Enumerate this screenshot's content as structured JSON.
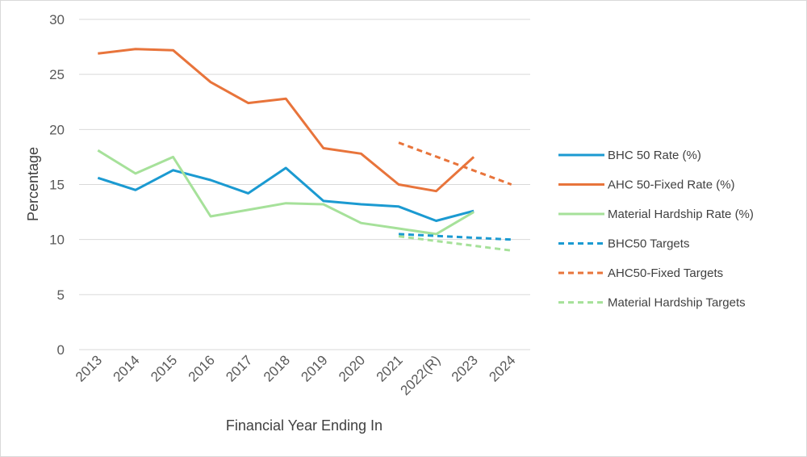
{
  "chart_data": {
    "type": "line",
    "title": "",
    "xlabel": "Financial Year Ending In",
    "ylabel": "Percentage",
    "ylim": [
      0,
      30
    ],
    "yticks": [
      "0",
      "5",
      "10",
      "15",
      "20",
      "25",
      "30"
    ],
    "categories": [
      "2013",
      "2014",
      "2015",
      "2016",
      "2017",
      "2018",
      "2019",
      "2020",
      "2021",
      "2022(R)",
      "2023",
      "2024"
    ],
    "grid": true,
    "legend_position": "right",
    "series": [
      {
        "name": "BHC 50 Rate (%)",
        "color": "#1b9ad1",
        "dash": "solid",
        "values": [
          15.6,
          14.5,
          16.3,
          15.4,
          14.2,
          16.5,
          13.5,
          13.2,
          13.0,
          11.7,
          12.6,
          null
        ]
      },
      {
        "name": " AHC 50-Fixed Rate (%)",
        "color": "#e8743b",
        "dash": "solid",
        "values": [
          26.9,
          27.3,
          27.2,
          24.3,
          22.4,
          22.8,
          18.3,
          17.8,
          15.0,
          14.4,
          17.5,
          null
        ]
      },
      {
        "name": " Material Hardship Rate (%)",
        "color": "#a6e19a",
        "dash": "solid",
        "values": [
          18.1,
          16.0,
          17.5,
          12.1,
          12.7,
          13.3,
          13.2,
          11.5,
          11.0,
          10.5,
          12.5,
          null
        ]
      },
      {
        "name": "BHC50 Targets",
        "color": "#1b9ad1",
        "dash": "dashed",
        "values": [
          null,
          null,
          null,
          null,
          null,
          null,
          null,
          null,
          10.5,
          null,
          null,
          10.0
        ]
      },
      {
        "name": "AHC50-Fixed Targets",
        "color": "#e8743b",
        "dash": "dashed",
        "values": [
          null,
          null,
          null,
          null,
          null,
          null,
          null,
          null,
          18.8,
          null,
          null,
          15.0
        ]
      },
      {
        "name": "Material Hardship Targets",
        "color": "#a6e19a",
        "dash": "dashed",
        "values": [
          null,
          null,
          null,
          null,
          null,
          null,
          null,
          null,
          10.3,
          null,
          null,
          9.0
        ]
      }
    ]
  }
}
